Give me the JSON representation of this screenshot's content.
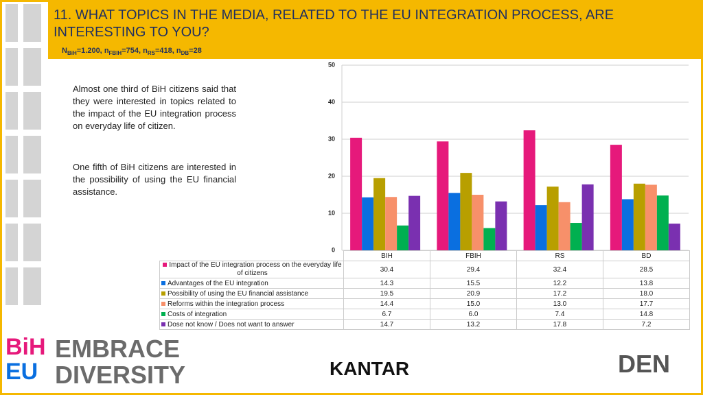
{
  "header": {
    "title": "11. WHAT TOPICS IN THE MEDIA, RELATED TO THE EU INTEGRATION PROCESS, ARE INTERESTING TO YOU?",
    "sample": [
      {
        "symbol": "N",
        "sub": "BiH",
        "value": "=1.200, "
      },
      {
        "symbol": "n",
        "sub": "FBIH",
        "value": "=754, "
      },
      {
        "symbol": "n",
        "sub": "RS",
        "value": "=418, "
      },
      {
        "symbol": "n",
        "sub": "DB",
        "value": "=28"
      }
    ]
  },
  "text": [
    "Almost one third of BiH citizens said that they were interested in topics related to the impact of the EU integration process on everyday life of citizen.",
    "One fifth of BiH citizens are interested in the possibility of using the EU financial assistance."
  ],
  "logos": {
    "mark": [
      "BiH",
      "EU"
    ],
    "slogan": [
      "EMBRACE",
      "DIVERSITY"
    ],
    "kantar": "KANTAR",
    "den": "DEN"
  },
  "chart_data": {
    "type": "bar",
    "categories": [
      "BIH",
      "FBIH",
      "RS",
      "BD"
    ],
    "ylim": [
      0,
      50
    ],
    "yticks": [
      0,
      10,
      20,
      30,
      40,
      50
    ],
    "grid": true,
    "series": [
      {
        "name": "Impact of the EU integration process on the everyday life of citizens",
        "color": "#e6197b",
        "values": [
          30.4,
          29.4,
          32.4,
          28.5
        ],
        "value_labels": [
          "30.4",
          "29.4",
          "32.4",
          "28.5"
        ]
      },
      {
        "name": "Advantages of the EU integration",
        "color": "#0a6fe0",
        "values": [
          14.3,
          15.5,
          12.2,
          13.8
        ],
        "value_labels": [
          "14.3",
          "15.5",
          "12.2",
          "13.8"
        ]
      },
      {
        "name": "Possibility of using the EU financial assistance",
        "color": "#b89f00",
        "values": [
          19.5,
          20.9,
          17.2,
          18.0
        ],
        "value_labels": [
          "19.5",
          "20.9",
          "17.2",
          "18.0"
        ]
      },
      {
        "name": "Reforms within the integration process",
        "color": "#f7906a",
        "values": [
          14.4,
          15.0,
          13.0,
          17.7
        ],
        "value_labels": [
          "14.4",
          "15.0",
          "13.0",
          "17.7"
        ]
      },
      {
        "name": "Costs of integration",
        "color": "#00b050",
        "values": [
          6.7,
          6.0,
          7.4,
          14.8
        ],
        "value_labels": [
          "6.7",
          "6.0",
          "7.4",
          "14.8"
        ]
      },
      {
        "name": "Dose not know / Does not want to answer",
        "color": "#7a30b0",
        "values": [
          14.7,
          13.2,
          17.8,
          7.2
        ],
        "value_labels": [
          "14.7",
          "13.2",
          "17.8",
          "7.2"
        ]
      }
    ]
  }
}
